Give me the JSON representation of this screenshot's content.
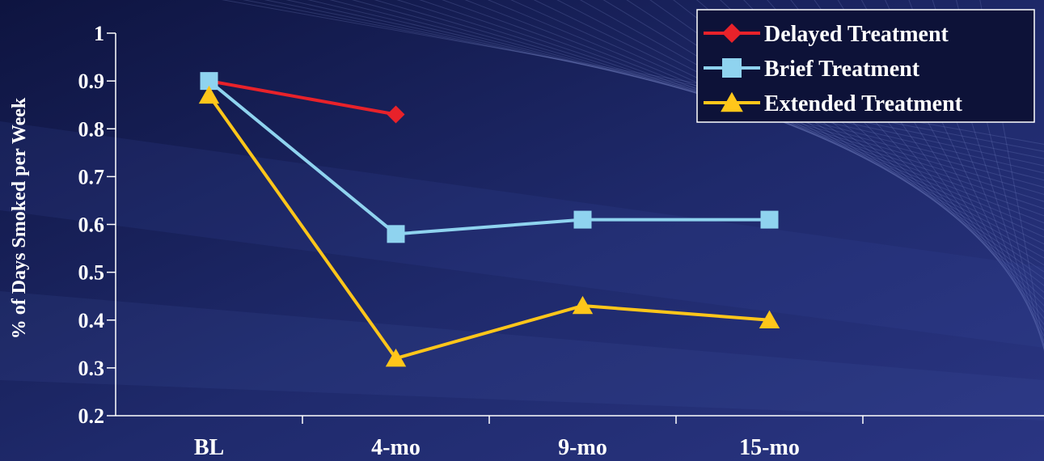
{
  "chart_data": {
    "type": "line",
    "title": "",
    "ylabel": "% of Days Smoked per Week",
    "xlabel": "",
    "categories": [
      "BL",
      "4-mo",
      "9-mo",
      "15-mo"
    ],
    "ylim": [
      0.2,
      1
    ],
    "yticks": [
      "0.2",
      "0.3",
      "0.4",
      "0.5",
      "0.6",
      "0.7",
      "0.8",
      "0.9",
      "1"
    ],
    "grid": false,
    "legend_position": "top-right",
    "series": [
      {
        "name": "Delayed Treatment",
        "color": "#e8222a",
        "marker": "diamond",
        "values": [
          0.9,
          0.83,
          null,
          null
        ]
      },
      {
        "name": "Brief Treatment",
        "color": "#8fd3ef",
        "marker": "square",
        "values": [
          0.9,
          0.58,
          0.61,
          0.61
        ]
      },
      {
        "name": "Extended Treatment",
        "color": "#ffc61a",
        "marker": "triangle",
        "values": [
          0.87,
          0.32,
          0.43,
          0.4
        ]
      }
    ]
  }
}
